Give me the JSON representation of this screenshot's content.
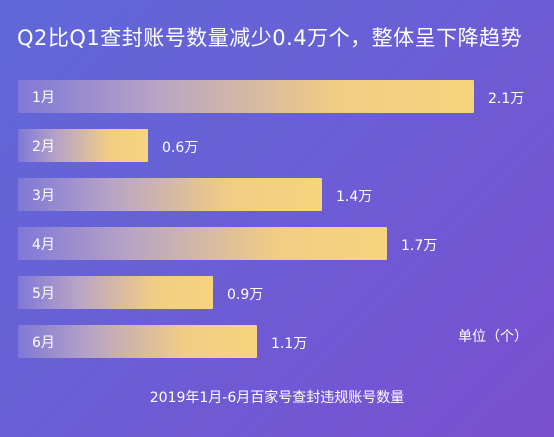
{
  "title": "Q2比Q1查封账号数量减少0.4万个，整体呈下降趋势",
  "unit_label": "单位（个）",
  "footer": "2019年1月-6月百家号查封违规账号数量",
  "chart_data": {
    "type": "bar",
    "orientation": "horizontal",
    "categories": [
      "1月",
      "2月",
      "3月",
      "4月",
      "5月",
      "6月"
    ],
    "values": [
      2.1,
      0.6,
      1.4,
      1.7,
      0.9,
      1.1
    ],
    "value_labels": [
      "2.1万",
      "0.6万",
      "1.4万",
      "1.7万",
      "0.9万",
      "1.1万"
    ],
    "title": "Q2比Q1查封账号数量减少0.4万个，整体呈下降趋势",
    "xlabel": "",
    "ylabel": "",
    "legend": "none",
    "grid": false
  }
}
